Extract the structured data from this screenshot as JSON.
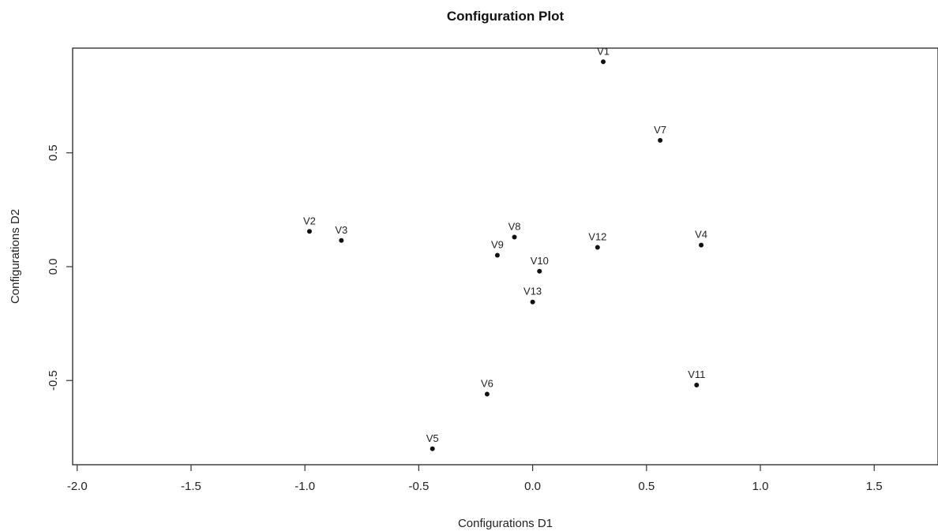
{
  "chart_data": {
    "type": "scatter",
    "title": "Configuration Plot",
    "xlabel": "Configurations D1",
    "ylabel": "Configurations D2",
    "xlim": [
      -2.02,
      1.78
    ],
    "ylim": [
      -0.87,
      0.96
    ],
    "x_ticks": [
      {
        "value": -2.0,
        "label": "-2.0"
      },
      {
        "value": -1.5,
        "label": "-1.5"
      },
      {
        "value": -1.0,
        "label": "-1.0"
      },
      {
        "value": -0.5,
        "label": "-0.5"
      },
      {
        "value": 0.0,
        "label": "0.0"
      },
      {
        "value": 0.5,
        "label": "0.5"
      },
      {
        "value": 1.0,
        "label": "1.0"
      },
      {
        "value": 1.5,
        "label": "1.5"
      }
    ],
    "y_ticks": [
      {
        "value": -0.5,
        "label": "-0.5"
      },
      {
        "value": 0.0,
        "label": "0.0"
      },
      {
        "value": 0.5,
        "label": "0.5"
      }
    ],
    "grid": false,
    "points": [
      {
        "label": "V1",
        "x": 0.31,
        "y": 0.9
      },
      {
        "label": "V2",
        "x": -0.98,
        "y": 0.155
      },
      {
        "label": "V3",
        "x": -0.84,
        "y": 0.115
      },
      {
        "label": "V4",
        "x": 0.74,
        "y": 0.095
      },
      {
        "label": "V5",
        "x": -0.44,
        "y": -0.8
      },
      {
        "label": "V6",
        "x": -0.2,
        "y": -0.56
      },
      {
        "label": "V7",
        "x": 0.56,
        "y": 0.555
      },
      {
        "label": "V8",
        "x": -0.08,
        "y": 0.13
      },
      {
        "label": "V9",
        "x": -0.155,
        "y": 0.05
      },
      {
        "label": "V10",
        "x": 0.03,
        "y": -0.02
      },
      {
        "label": "V11",
        "x": 0.72,
        "y": -0.52
      },
      {
        "label": "V12",
        "x": 0.285,
        "y": 0.085
      },
      {
        "label": "V13",
        "x": 0.0,
        "y": -0.155
      }
    ]
  }
}
